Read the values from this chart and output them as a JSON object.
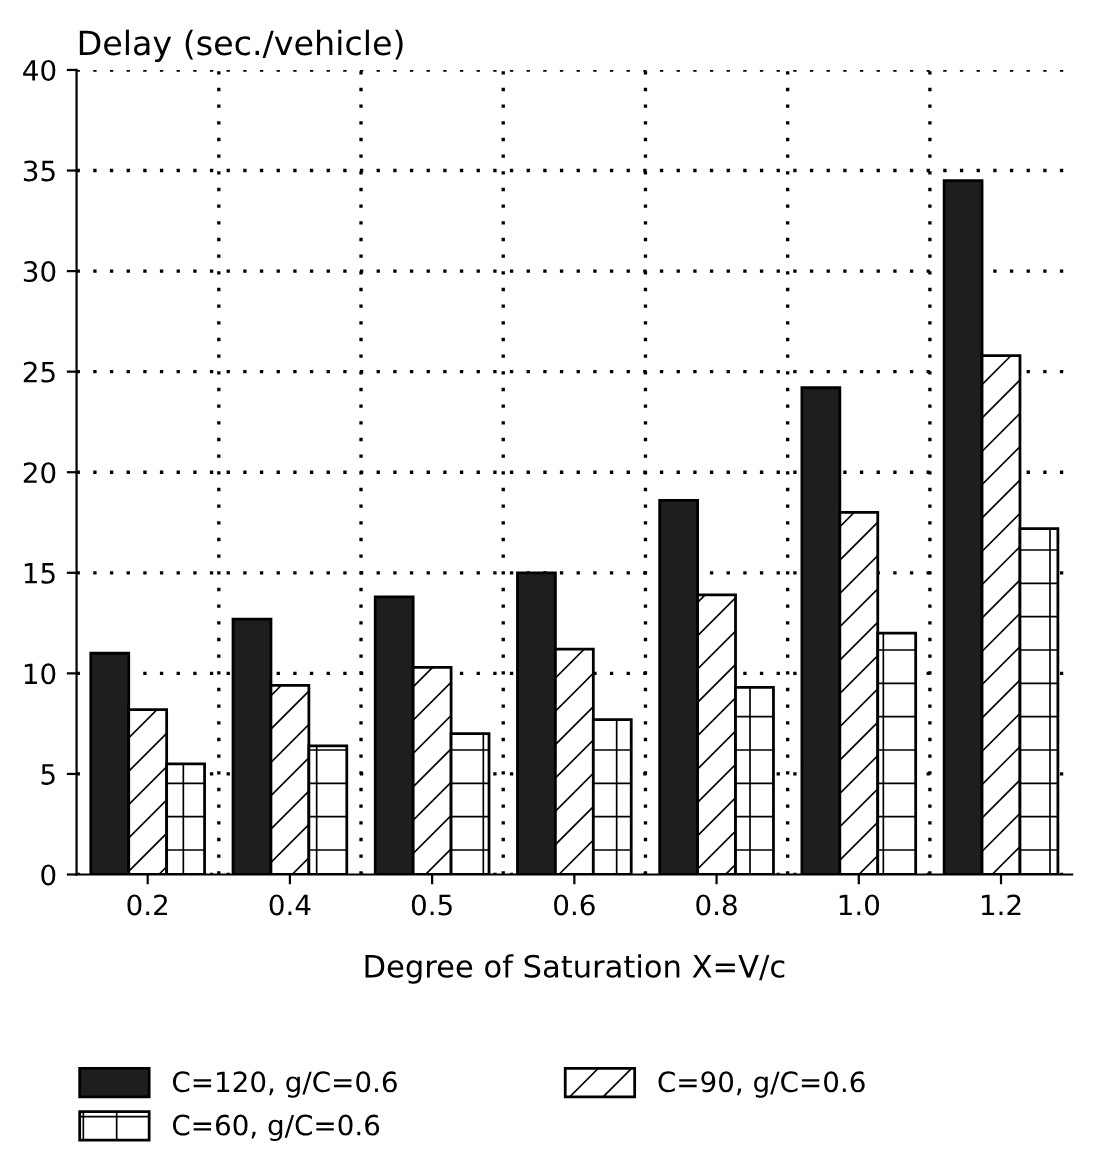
{
  "chart_data": {
    "type": "bar",
    "ylabel": "Delay (sec./vehicle)",
    "xlabel": "Degree of Saturation X=V/c",
    "categories": [
      "0.2",
      "0.4",
      "0.5",
      "0.6",
      "0.8",
      "1.0",
      "1.2"
    ],
    "series": [
      {
        "name": "C=120, g/C=0.6",
        "color": "#1e1e1e",
        "values": [
          11,
          12.7,
          13.8,
          15,
          18.6,
          24.2,
          34.5
        ]
      },
      {
        "name": "C=90, g/C=0.6",
        "color": "#000000",
        "values": [
          8.2,
          9.4,
          10.3,
          11.2,
          13.9,
          18,
          25.8
        ]
      },
      {
        "name": "C=60, g/C=0.6",
        "color": "#000000",
        "values": [
          5.5,
          6.4,
          7,
          7.7,
          9.3,
          12,
          17.2
        ]
      }
    ],
    "ylim": [
      0,
      40
    ],
    "yticks": [
      0,
      5,
      10,
      15,
      20,
      25,
      30,
      35,
      40
    ],
    "grid": true,
    "legend": "bottom"
  }
}
